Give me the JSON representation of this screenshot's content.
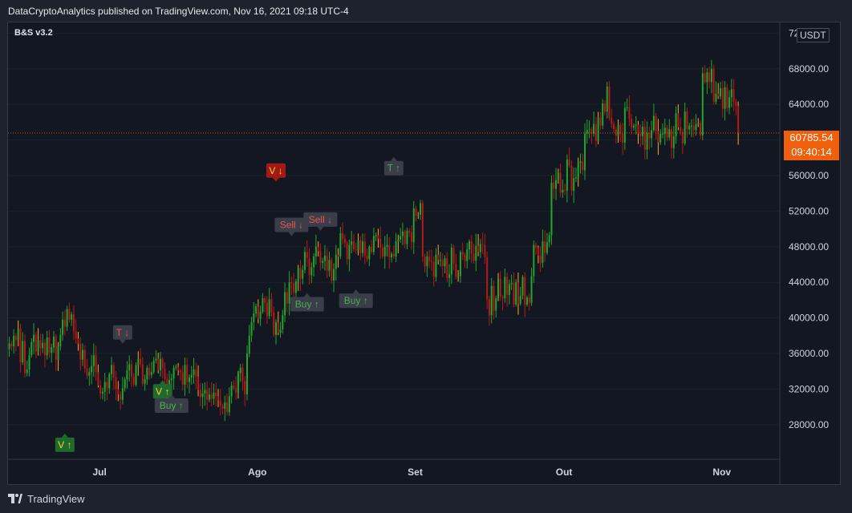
{
  "header": {
    "publisher_text": "DataCryptoAnalytics published on TradingView.com, Nov 16, 2021 09:18 UTC-4"
  },
  "indicator": {
    "name": "B&S v3.2"
  },
  "price_axis": {
    "unit": "USDT"
  },
  "last_price": {
    "value": "60785.54",
    "countdown": "09:40:14"
  },
  "footer": {
    "brand": "TradingView"
  },
  "colors": {
    "up": "#21a52b",
    "down": "#b51a14",
    "last_line": "#f0600c",
    "background": "#131722"
  },
  "chart_data": {
    "type": "candlestick",
    "title": "",
    "xlabel": "",
    "ylabel": "",
    "ylim": [
      24000,
      72000
    ],
    "y_ticks": [
      28000,
      32000,
      36000,
      40000,
      44000,
      48000,
      52000,
      56000,
      60000,
      64000,
      68000,
      72000
    ],
    "y_tick_labels": [
      "28000.00",
      "32000.00",
      "36000.00",
      "40000.00",
      "44000.00",
      "48000.00",
      "52000.00",
      "56000.00",
      "60000.00",
      "64000.00",
      "68000.00",
      "72000.00"
    ],
    "x_ticks": [
      {
        "label": "Jul",
        "index": 41
      },
      {
        "label": "Ago",
        "index": 112
      },
      {
        "label": "Set",
        "index": 183
      },
      {
        "label": "Out",
        "index": 250
      },
      {
        "label": "Nov",
        "index": 321
      }
    ],
    "last_price": 60785.54,
    "close_series": [
      37100,
      36800,
      38000,
      37500,
      38800,
      35000,
      37400,
      33800,
      34200,
      35800,
      37300,
      38100,
      36200,
      37500,
      36600,
      37200,
      35800,
      37800,
      36100,
      36700,
      37900,
      35300,
      36800,
      38100,
      39800,
      39000,
      41000,
      39800,
      40400,
      38500,
      37700,
      37100,
      35300,
      36400,
      34300,
      33500,
      33900,
      34600,
      35800,
      33900,
      32400,
      31500,
      31700,
      32800,
      32100,
      33700,
      34700,
      33300,
      32000,
      31400,
      30800,
      32100,
      33100,
      34100,
      34800,
      33400,
      32500,
      34700,
      35400,
      34800,
      32600,
      33100,
      34400,
      33600,
      33900,
      35200,
      35400,
      34100,
      35400,
      34300,
      33100,
      32300,
      33000,
      33200,
      34400,
      34500,
      34100,
      33900,
      32500,
      34700,
      32800,
      33300,
      33600,
      34200,
      33400,
      31900,
      31100,
      31500,
      31900,
      30800,
      31400,
      30900,
      31600,
      31200,
      30700,
      30100,
      29800,
      30500,
      29400,
      31200,
      32400,
      32100,
      31600,
      33800,
      34400,
      32900,
      31400,
      36000,
      38000,
      39500,
      40500,
      41300,
      39900,
      40700,
      42200,
      41700,
      40200,
      42100,
      40600,
      38100,
      39500,
      38300,
      38700,
      40300,
      42900,
      41600,
      44000,
      43900,
      42800,
      44100,
      45600,
      44400,
      45400,
      47400,
      46700,
      44800,
      45700,
      46900,
      48000,
      47500,
      46200,
      46400,
      47000,
      45300,
      46500,
      44200,
      45500,
      47100,
      46900,
      49500,
      48900,
      48400,
      46600,
      48200,
      48600,
      47700,
      47600,
      48700,
      47300,
      48600,
      47000,
      46600,
      48000,
      47400,
      49200,
      49300,
      48900,
      47900,
      46900,
      48000,
      48200,
      46800,
      47200,
      46900,
      48600,
      48800,
      49200,
      49700,
      48300,
      49800,
      49600,
      48500,
      52300,
      51500,
      51600,
      52900,
      46900,
      45800,
      46900,
      46400,
      46300,
      44600,
      47100,
      46500,
      46500,
      45800,
      46700,
      44500,
      44900,
      47900,
      46100,
      44600,
      44700,
      47400,
      47100,
      46400,
      47700,
      48600,
      47200,
      46400,
      48100,
      47400,
      48300,
      48200,
      46800,
      42100,
      40300,
      43600,
      40800,
      42200,
      44400,
      42400,
      42200,
      44600,
      42600,
      43800,
      43900,
      41500,
      44000,
      41600,
      42500,
      44600,
      41500,
      42300,
      41700,
      44700,
      48200,
      47900,
      47000,
      46200,
      48600,
      47300,
      48500,
      49300,
      55200,
      54500,
      55500,
      56300,
      54100,
      54400,
      54300,
      57800,
      57100,
      54300,
      55700,
      55800,
      57400,
      57600,
      56600,
      60700,
      61100,
      61200,
      60700,
      61800,
      59900,
      62500,
      61600,
      64100,
      63200,
      66000,
      62500,
      61800,
      61200,
      60500,
      61700,
      60700,
      59700,
      63600,
      63700,
      62400,
      61400,
      61600,
      61700,
      60700,
      60400,
      61500,
      58900,
      60800,
      60200,
      61100,
      62700,
      61000,
      59700,
      60700,
      60700,
      61400,
      60300,
      61200,
      59100,
      60400,
      63000,
      61400,
      60900,
      59600,
      63200,
      61200,
      61600,
      61600,
      61100,
      61800,
      61900,
      60500,
      67500,
      66500,
      67600,
      66500,
      68000,
      64300,
      65200,
      64900,
      65800,
      63500,
      65900,
      63600,
      64800,
      65700,
      64300,
      63800,
      60785.54
    ],
    "annotations": [
      {
        "label": "V ↑",
        "type": "buy-volume",
        "index": 25,
        "price": 27000,
        "placement": "below"
      },
      {
        "label": "T ↓",
        "type": "sell-trend",
        "index": 51,
        "price": 37100,
        "placement": "above"
      },
      {
        "label": "V ↑",
        "type": "buy-volume",
        "index": 69,
        "price": 33000,
        "placement": "below"
      },
      {
        "label": "Buy ↑",
        "type": "buy",
        "index": 73,
        "price": 31400,
        "placement": "below"
      },
      {
        "label": "V ↓",
        "type": "sell-volume",
        "index": 120,
        "price": 55300,
        "placement": "above"
      },
      {
        "label": "Sell ↓",
        "type": "sell",
        "index": 127,
        "price": 49200,
        "placement": "above"
      },
      {
        "label": "Buy ↑",
        "type": "buy",
        "index": 134,
        "price": 42800,
        "placement": "below"
      },
      {
        "label": "Sell ↓",
        "type": "sell",
        "index": 140,
        "price": 49800,
        "placement": "above"
      },
      {
        "label": "Buy ↑",
        "type": "buy",
        "index": 156,
        "price": 43200,
        "placement": "below"
      },
      {
        "label": "T ↑",
        "type": "buy-trend",
        "index": 173,
        "price": 58100,
        "placement": "below"
      }
    ]
  }
}
